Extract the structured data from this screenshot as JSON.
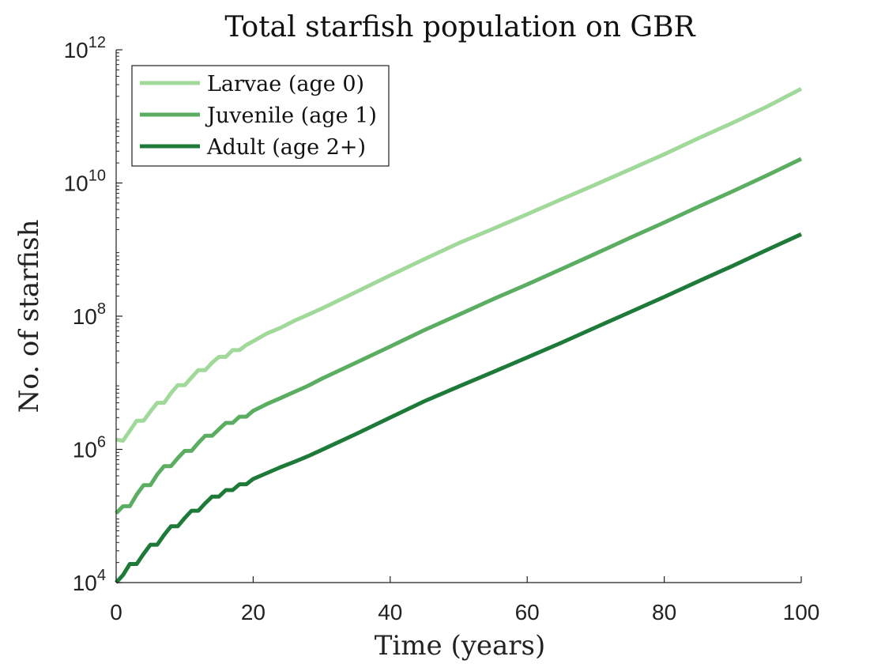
{
  "chart_data": {
    "type": "line",
    "title": "Total starfish population on GBR",
    "xlabel": "Time (years)",
    "ylabel": "No. of starfish",
    "xlim": [
      0,
      100
    ],
    "ylim": [
      10000,
      1000000000000
    ],
    "yscale": "log",
    "xticks": [
      0,
      20,
      40,
      60,
      80,
      100
    ],
    "xtick_labels": [
      "0",
      "20",
      "40",
      "60",
      "80",
      "100"
    ],
    "yticks": [
      10000,
      1000000,
      100000000,
      10000000000,
      1000000000000
    ],
    "ytick_labels": [
      {
        "base": "10",
        "exp": "4"
      },
      {
        "base": "10",
        "exp": "6"
      },
      {
        "base": "10",
        "exp": "8"
      },
      {
        "base": "10",
        "exp": "10"
      },
      {
        "base": "10",
        "exp": "12"
      }
    ],
    "grid": false,
    "legend_position": "top-left",
    "series": [
      {
        "name": "Larvae (age 0)",
        "color": "#a1d99b",
        "x": [
          0,
          1,
          2,
          3,
          4,
          5,
          6,
          7,
          8,
          9,
          10,
          11,
          12,
          13,
          14,
          15,
          16,
          17,
          18,
          19,
          20,
          22,
          24,
          26,
          28,
          30,
          35,
          40,
          45,
          50,
          55,
          60,
          65,
          70,
          75,
          80,
          85,
          90,
          95,
          100
        ],
        "values": [
          1400000,
          1350000,
          1900000,
          2700000,
          2700000,
          3700000,
          5000000,
          5000000,
          7000000,
          9200000,
          9200000,
          12000000,
          15500000,
          15500000,
          20000000,
          24500000,
          24500000,
          31000000,
          31000000,
          37000000,
          42000000,
          55000000,
          67000000,
          85000000,
          105000000,
          130000000,
          230000000,
          410000000,
          720000000,
          1250000000,
          2050000000,
          3400000000,
          5700000000,
          9500000000,
          16000000000,
          27000000000,
          47000000000,
          80000000000,
          140000000000,
          260000000000
        ]
      },
      {
        "name": "Juvenile (age 1)",
        "color": "#5bae61",
        "x": [
          0,
          1,
          2,
          3,
          4,
          5,
          6,
          7,
          8,
          9,
          10,
          11,
          12,
          13,
          14,
          15,
          16,
          17,
          18,
          19,
          20,
          22,
          24,
          26,
          28,
          30,
          35,
          40,
          45,
          50,
          55,
          60,
          65,
          70,
          75,
          80,
          85,
          90,
          95,
          100
        ],
        "values": [
          110000,
          140000,
          140000,
          210000,
          290000,
          290000,
          420000,
          560000,
          560000,
          740000,
          950000,
          950000,
          1250000,
          1600000,
          1600000,
          2000000,
          2500000,
          2500000,
          3100000,
          3100000,
          3800000,
          4800000,
          5900000,
          7300000,
          9000000,
          11500000,
          20000000,
          35000000,
          62000000,
          105000000,
          180000000,
          300000000,
          510000000,
          870000000,
          1500000000,
          2550000000,
          4400000000,
          7500000000,
          13000000000,
          23000000000
        ]
      },
      {
        "name": "Adult (age 2+)",
        "color": "#1e7a38",
        "x": [
          0,
          1,
          2,
          3,
          4,
          5,
          6,
          7,
          8,
          9,
          10,
          11,
          12,
          13,
          14,
          15,
          16,
          17,
          18,
          19,
          20,
          22,
          24,
          26,
          28,
          30,
          35,
          40,
          45,
          50,
          55,
          60,
          65,
          70,
          75,
          80,
          85,
          90,
          95,
          100
        ],
        "values": [
          10000,
          13000,
          19000,
          19000,
          27000,
          37000,
          37000,
          52000,
          70000,
          70000,
          93000,
          120000,
          120000,
          155000,
          195000,
          195000,
          245000,
          245000,
          300000,
          300000,
          360000,
          440000,
          540000,
          650000,
          790000,
          980000,
          1700000,
          3000000,
          5300000,
          8800000,
          14500000,
          24000000,
          40000000,
          68000000,
          115000000,
          195000000,
          335000000,
          570000000,
          990000000,
          1700000000
        ]
      }
    ]
  }
}
